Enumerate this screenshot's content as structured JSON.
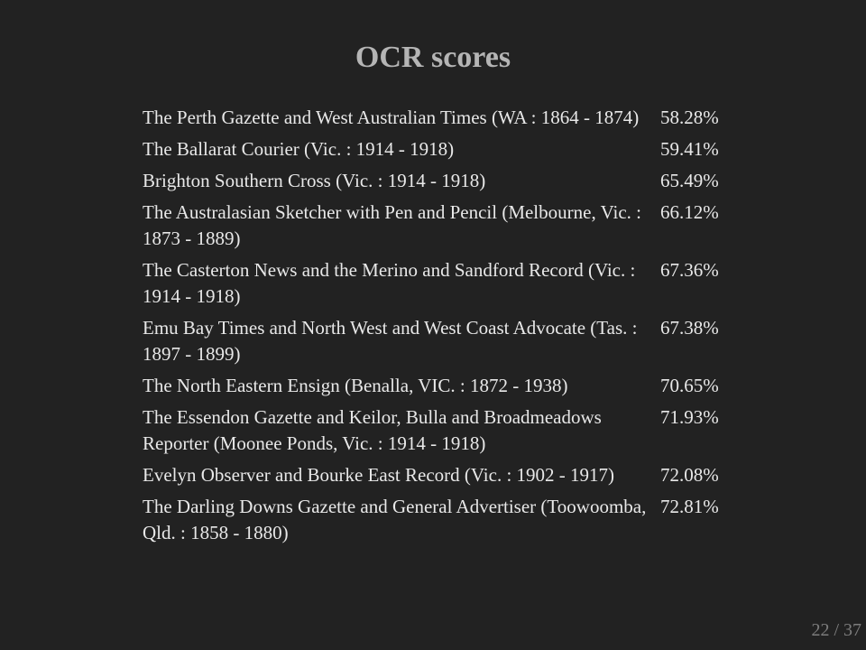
{
  "slide": {
    "title": "OCR scores"
  },
  "rows": [
    {
      "title": "The Perth Gazette and West Australian Times (WA : 1864 - 1874)",
      "score": "58.28%"
    },
    {
      "title": "The Ballarat Courier (Vic. : 1914 - 1918)",
      "score": "59.41%"
    },
    {
      "title": "Brighton Southern Cross (Vic. : 1914 - 1918)",
      "score": "65.49%"
    },
    {
      "title": "The Australasian Sketcher with Pen and Pencil (Melbourne, Vic. : 1873 - 1889)",
      "score": "66.12%"
    },
    {
      "title": "The Casterton News and the Merino and Sandford Record (Vic. : 1914 - 1918)",
      "score": "67.36%"
    },
    {
      "title": "Emu Bay Times and North West and West Coast Advocate (Tas. : 1897 - 1899)",
      "score": "67.38%"
    },
    {
      "title": "The North Eastern Ensign (Benalla, VIC. : 1872 - 1938)",
      "score": "70.65%"
    },
    {
      "title": "The Essendon Gazette and Keilor, Bulla and Broadmeadows Reporter (Moonee Ponds, Vic. : 1914 - 1918)",
      "score": "71.93%"
    },
    {
      "title": "Evelyn Observer and Bourke East Record (Vic. : 1902 - 1917)",
      "score": "72.08%"
    },
    {
      "title": "The Darling Downs Gazette and General Advertiser (Toowoomba, Qld. : 1858 - 1880)",
      "score": "72.81%"
    }
  ],
  "footer": {
    "page_counter": "22 / 37"
  }
}
